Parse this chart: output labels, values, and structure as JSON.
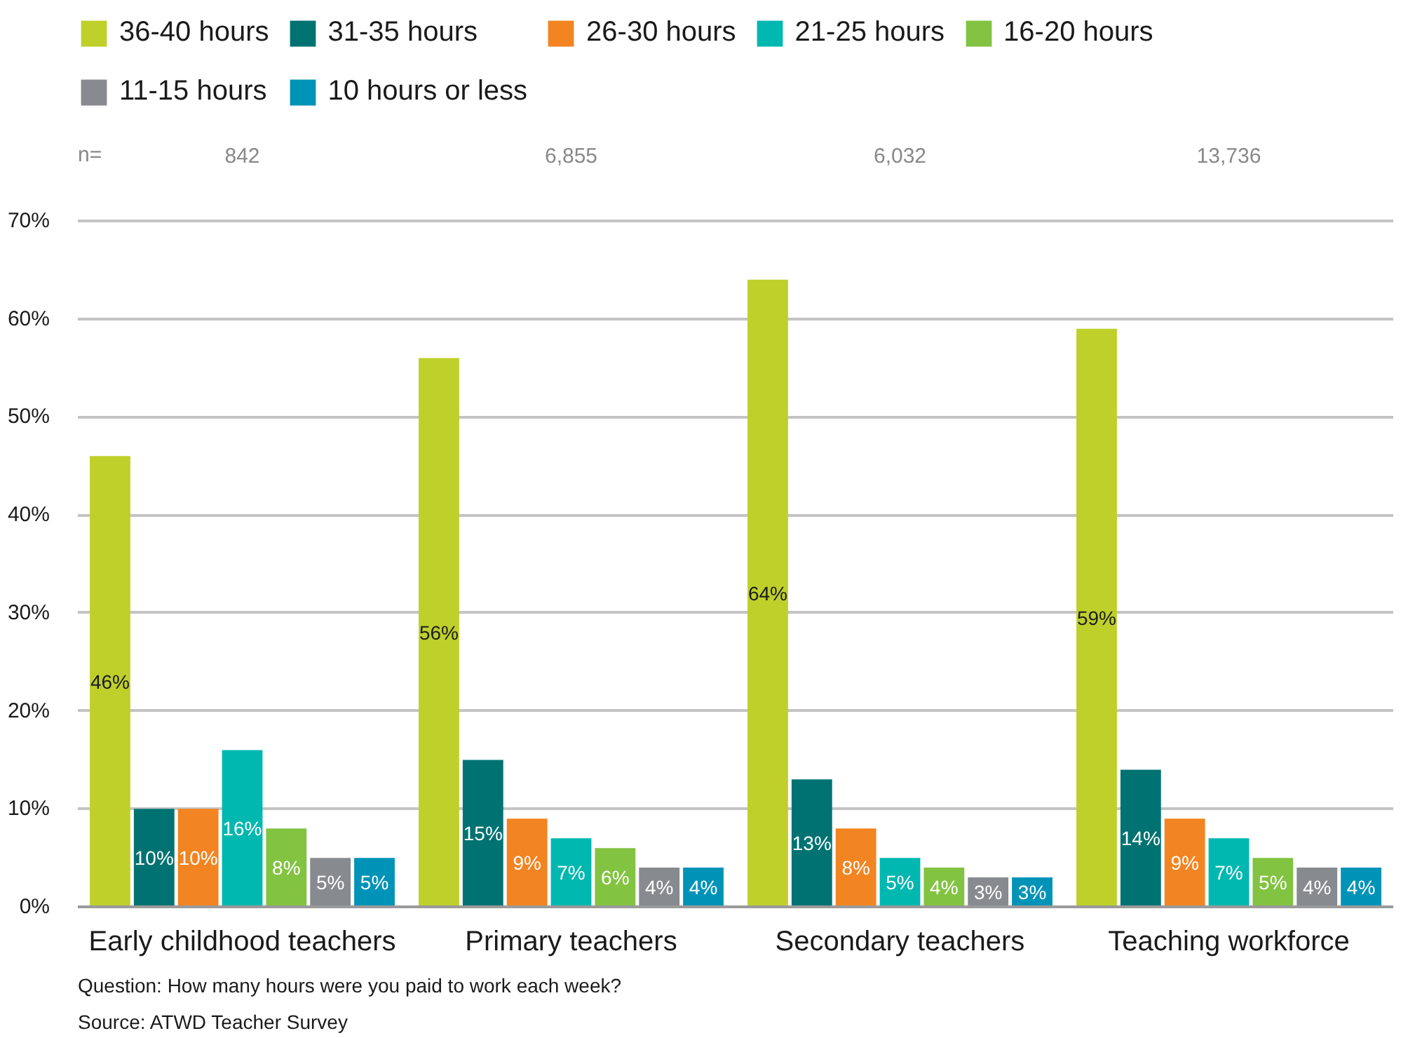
{
  "chart_data": {
    "type": "bar",
    "categories": [
      "Early childhood teachers",
      "Primary teachers",
      "Secondary teachers",
      "Teaching workforce"
    ],
    "series": [
      {
        "name": "36-40 hours",
        "color": "#bfd02b",
        "values": [
          46,
          56,
          64,
          59
        ],
        "value_labels": [
          "46%",
          "56%",
          "64%",
          "59%"
        ]
      },
      {
        "name": "31-35 hours",
        "color": "#007272",
        "values": [
          10,
          15,
          13,
          14
        ],
        "value_labels": [
          "10%",
          "15%",
          "13%",
          "14%"
        ]
      },
      {
        "name": "26-30 hours",
        "color": "#f28421",
        "values": [
          10,
          9,
          8,
          9
        ],
        "value_labels": [
          "10%",
          "9%",
          "8%",
          "9%"
        ]
      },
      {
        "name": "21-25 hours",
        "color": "#00b8b0",
        "values": [
          16,
          7,
          5,
          7
        ],
        "value_labels": [
          "16%",
          "7%",
          "5%",
          "7%"
        ]
      },
      {
        "name": "16-20 hours",
        "color": "#82c341",
        "values": [
          8,
          6,
          4,
          5
        ],
        "value_labels": [
          "8%",
          "6%",
          "4%",
          "5%"
        ]
      },
      {
        "name": "11-15 hours",
        "color": "#878b90",
        "values": [
          5,
          4,
          3,
          4
        ],
        "value_labels": [
          "5%",
          "4%",
          "3%",
          "4%"
        ]
      },
      {
        "name": "10 hours or less",
        "color": "#0093b8",
        "values": [
          5,
          4,
          3,
          4
        ],
        "value_labels": [
          "5%",
          "4%",
          "3%",
          "4%"
        ]
      }
    ],
    "ylim": [
      0,
      70
    ],
    "yticks": [
      {
        "value": 0,
        "label": "0%"
      },
      {
        "value": 10,
        "label": "10%"
      },
      {
        "value": 20,
        "label": "20%"
      },
      {
        "value": 30,
        "label": "30%"
      },
      {
        "value": 40,
        "label": "40%"
      },
      {
        "value": 50,
        "label": "50%"
      },
      {
        "value": 60,
        "label": "60%"
      },
      {
        "value": 70,
        "label": "70%"
      }
    ],
    "grid": "y",
    "legend": "top",
    "annotations": [
      "n=",
      "842",
      "6,855",
      "6,032",
      "13,736",
      "Question: How many hours were you paid to work each week?",
      "Source: ATWD Teacher Survey"
    ]
  }
}
